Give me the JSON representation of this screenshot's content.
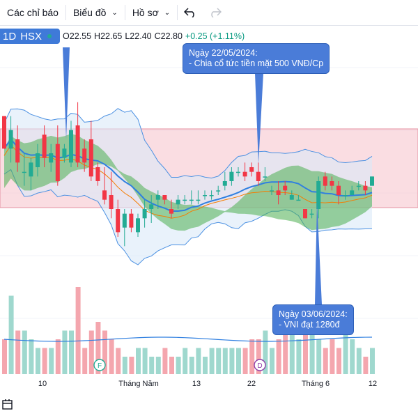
{
  "toolbar": {
    "indicators_label": "Các chỉ báo",
    "charts_label": "Biểu đồ",
    "profile_label": "Hồ sơ",
    "undo_icon": "undo-icon",
    "redo_icon": "redo-icon"
  },
  "legend": {
    "interval": "1D",
    "exchange": "HSX",
    "open": "O22.55",
    "high": "H22.65",
    "low": "L22.40",
    "close": "C22.80",
    "change": "+0.25 (+1.11%)"
  },
  "annotations": {
    "dividend": "Ngày 22/05/2024:\n- Chia cổ tức tiền mặt 500 VNĐ/Cp",
    "vni": "Ngày 03/06/2024:\n- VNI đạt 1280đ"
  },
  "markers": {
    "f": "F",
    "d": "D"
  },
  "x_axis": {
    "labels": [
      "10",
      "Tháng Năm",
      "13",
      "22",
      "Tháng 6",
      "12"
    ]
  },
  "colors": {
    "up": "#22ab94",
    "down": "#f23645",
    "accent": "#2962ff",
    "callout": "#4a7cd8"
  },
  "chart_data": {
    "type": "candlestick",
    "series": [
      {
        "name": "",
        "ohlc": [
          [
            23.6,
            23.6,
            22.9,
            22.9
          ],
          [
            22.9,
            23.6,
            22.6,
            23.3
          ],
          [
            23.1,
            23.4,
            22.4,
            22.6
          ],
          [
            22.4,
            22.8,
            22.1,
            22.4
          ],
          [
            22.3,
            22.7,
            22.0,
            22.6
          ],
          [
            22.5,
            23.0,
            22.3,
            22.8
          ],
          [
            23.2,
            23.4,
            22.5,
            22.7
          ],
          [
            22.6,
            23.0,
            22.4,
            22.8
          ],
          [
            23.0,
            23.4,
            22.1,
            22.2
          ],
          [
            22.7,
            23.0,
            22.6,
            22.9
          ],
          [
            22.6,
            23.5,
            22.5,
            23.3
          ],
          [
            23.4,
            23.9,
            22.5,
            22.6
          ],
          [
            22.9,
            23.1,
            22.4,
            22.6
          ],
          [
            23.1,
            23.5,
            22.2,
            22.3
          ],
          [
            22.5,
            22.6,
            22.1,
            22.2
          ],
          [
            22.0,
            22.5,
            21.7,
            21.8
          ],
          [
            21.9,
            22.4,
            21.4,
            21.6
          ],
          [
            21.6,
            21.8,
            21.0,
            21.1
          ],
          [
            21.2,
            21.6,
            20.8,
            21.5
          ],
          [
            21.5,
            21.6,
            21.1,
            21.2
          ],
          [
            21.1,
            21.5,
            21.0,
            21.4
          ],
          [
            21.4,
            21.8,
            21.2,
            21.6
          ],
          [
            21.6,
            21.9,
            21.3,
            21.7
          ],
          [
            21.8,
            22.0,
            21.6,
            21.9
          ],
          [
            21.9,
            21.9,
            21.7,
            21.8
          ],
          [
            21.6,
            21.8,
            21.4,
            21.5
          ],
          [
            21.7,
            21.9,
            21.6,
            21.8
          ],
          [
            21.8,
            21.9,
            21.7,
            21.8
          ],
          [
            21.8,
            22.0,
            21.7,
            21.8
          ],
          [
            21.8,
            22.0,
            21.7,
            21.8
          ],
          [
            21.9,
            22.0,
            21.8,
            21.9
          ],
          [
            21.9,
            22.0,
            21.8,
            21.9
          ],
          [
            22.0,
            22.1,
            21.9,
            22.0
          ],
          [
            22.1,
            22.4,
            22.0,
            22.2
          ],
          [
            22.2,
            22.5,
            22.1,
            22.4
          ],
          [
            22.4,
            22.5,
            22.3,
            22.4
          ],
          [
            22.4,
            22.6,
            22.2,
            22.3
          ],
          [
            22.5,
            22.6,
            22.3,
            22.4
          ],
          [
            22.4,
            22.6,
            22.1,
            22.2
          ],
          [
            22.3,
            22.5,
            22.2,
            22.3
          ],
          [
            22.0,
            22.1,
            21.9,
            22.0
          ],
          [
            22.0,
            22.2,
            21.7,
            21.9
          ],
          [
            22.1,
            22.2,
            21.9,
            22.0
          ],
          [
            21.8,
            22.0,
            21.8,
            21.9
          ],
          [
            21.8,
            21.9,
            21.8,
            21.8
          ],
          [
            21.6,
            21.6,
            21.4,
            21.4
          ],
          [
            21.5,
            21.6,
            21.4,
            21.5
          ],
          [
            21.6,
            22.3,
            21.4,
            22.2
          ],
          [
            22.3,
            22.4,
            22.0,
            22.1
          ],
          [
            22.2,
            22.3,
            22.0,
            22.1
          ],
          [
            22.1,
            22.2,
            21.7,
            21.9
          ],
          [
            21.9,
            22.0,
            21.8,
            21.9
          ],
          [
            21.9,
            22.1,
            21.9,
            22.0
          ],
          [
            22.1,
            22.2,
            22.0,
            22.1
          ],
          [
            22.1,
            22.2,
            21.9,
            22.0
          ],
          [
            22.1,
            22.3,
            22.1,
            22.3
          ]
        ]
      }
    ],
    "volume": [
      4,
      9,
      5,
      5,
      4,
      3,
      3,
      3,
      4,
      5,
      5,
      10,
      3,
      5,
      6,
      5,
      4,
      3,
      2,
      2,
      3,
      3,
      2,
      2,
      3,
      2,
      2,
      3,
      2,
      3,
      2,
      3,
      3,
      3,
      3,
      3,
      3,
      4,
      4,
      5,
      3,
      4,
      5,
      6,
      4,
      5,
      6,
      4,
      3,
      4,
      3,
      5,
      4,
      3,
      2,
      3
    ],
    "ylim": [
      20.4,
      24.6
    ]
  }
}
